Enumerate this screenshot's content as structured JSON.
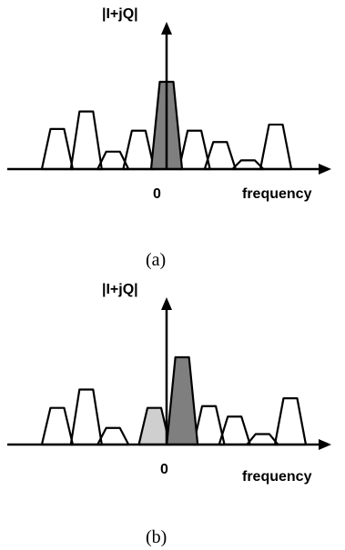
{
  "colors": {
    "stroke": "#000000",
    "outline_fill": "#ffffff",
    "dark_fill": "#7f7f7f",
    "light_fill": "#cfcfcf"
  },
  "figures": [
    {
      "id": "a",
      "caption": "(a)",
      "y_axis_label": "|I+jQ|",
      "x_axis_label": "frequency",
      "origin_label": "0",
      "channels": [
        {
          "center": -4.9,
          "height": 0.46,
          "fill": "outline"
        },
        {
          "center": -3.6,
          "height": 0.66,
          "fill": "outline"
        },
        {
          "center": -2.4,
          "height": 0.2,
          "fill": "outline"
        },
        {
          "center": -1.25,
          "height": 0.44,
          "fill": "outline"
        },
        {
          "center": 0.0,
          "height": 1.0,
          "fill": "dark"
        },
        {
          "center": 1.25,
          "height": 0.44,
          "fill": "outline"
        },
        {
          "center": 2.4,
          "height": 0.31,
          "fill": "outline"
        },
        {
          "center": 3.65,
          "height": 0.1,
          "fill": "outline"
        },
        {
          "center": 4.9,
          "height": 0.51,
          "fill": "outline"
        }
      ]
    },
    {
      "id": "b",
      "caption": "(b)",
      "y_axis_label": "|I+jQ|",
      "x_axis_label": "frequency",
      "origin_label": "0",
      "channels": [
        {
          "center": -4.9,
          "height": 0.42,
          "fill": "outline"
        },
        {
          "center": -3.6,
          "height": 0.63,
          "fill": "outline"
        },
        {
          "center": -2.4,
          "height": 0.19,
          "fill": "outline"
        },
        {
          "center": -0.55,
          "height": 0.42,
          "fill": "light"
        },
        {
          "center": 0.7,
          "height": 1.0,
          "fill": "dark"
        },
        {
          "center": 1.9,
          "height": 0.44,
          "fill": "outline"
        },
        {
          "center": 3.05,
          "height": 0.32,
          "fill": "outline"
        },
        {
          "center": 4.3,
          "height": 0.12,
          "fill": "outline"
        },
        {
          "center": 5.55,
          "height": 0.53,
          "fill": "outline"
        }
      ]
    }
  ]
}
